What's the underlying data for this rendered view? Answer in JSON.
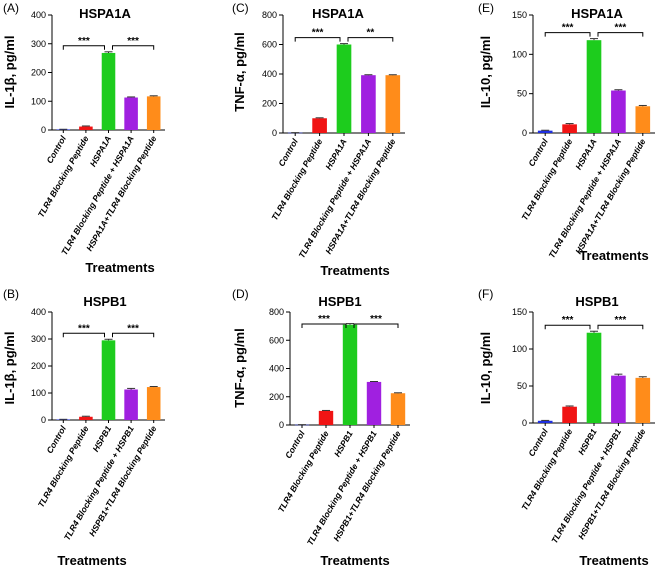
{
  "figure": {
    "colors": [
      "#1f2fe0",
      "#f01414",
      "#1dcc1d",
      "#a020e0",
      "#ff8c1a"
    ],
    "panels": [
      {
        "letter": "(A)",
        "title": "HSPA1A",
        "ylabel": "IL-1β, pg/ml",
        "xlabel": "Treatments",
        "ylim": [
          0,
          400
        ],
        "yticks": [
          0,
          100,
          200,
          300,
          400
        ],
        "stars": [
          "***",
          "***"
        ]
      },
      {
        "letter": "(C)",
        "title": "HSPA1A",
        "ylabel": "TNF-α, pg/ml",
        "xlabel": "Treatments",
        "ylim": [
          0,
          800
        ],
        "yticks": [
          0,
          200,
          400,
          600,
          800
        ],
        "stars": [
          "***",
          "**"
        ]
      },
      {
        "letter": "(E)",
        "title": "HSPA1A",
        "ylabel": "IL-10, pg/ml",
        "xlabel": "Treatments",
        "ylim": [
          0,
          150
        ],
        "yticks": [
          0,
          50,
          100,
          150
        ],
        "stars": [
          "***",
          "***"
        ]
      },
      {
        "letter": "(B)",
        "title": "HSPB1",
        "ylabel": "IL-1β, pg/ml",
        "xlabel": "Treatments",
        "ylim": [
          0,
          400
        ],
        "yticks": [
          0,
          100,
          200,
          300,
          400
        ],
        "stars": [
          "***",
          "***"
        ]
      },
      {
        "letter": "(D)",
        "title": "HSPB1",
        "ylabel": "TNF-α, pg/ml",
        "xlabel": "Treatments",
        "ylim": [
          0,
          800
        ],
        "yticks": [
          0,
          200,
          400,
          600,
          800
        ],
        "stars": [
          "***",
          "***"
        ]
      },
      {
        "letter": "(F)",
        "title": "HSPB1",
        "ylabel": "IL-10, pg/ml",
        "xlabel": "Treatments",
        "ylim": [
          0,
          150
        ],
        "yticks": [
          0,
          50,
          100,
          150
        ],
        "stars": [
          "***",
          "***"
        ]
      }
    ]
  },
  "chart_data": [
    {
      "type": "bar",
      "title": "HSPA1A",
      "xlabel": "Treatments",
      "ylabel": "IL-1β, pg/ml",
      "ylim": [
        0,
        400
      ],
      "categories": [
        "Control",
        "TLR4 Blocking Peptide",
        "HSPA1A",
        "TLR4 Blocking Peptide + HSPA1A",
        "HSPA1A+TLR4 Blocking Peptide"
      ],
      "values": [
        2,
        12,
        268,
        113,
        117
      ],
      "errors": [
        0.5,
        2,
        4,
        2,
        2
      ],
      "significance": [
        {
          "from": 0,
          "to": 2,
          "label": "***"
        },
        {
          "from": 2,
          "to": 4,
          "label": "***"
        }
      ],
      "grid": false,
      "legend": "none"
    },
    {
      "type": "bar",
      "title": "HSPA1A",
      "xlabel": "Treatments",
      "ylabel": "TNF-α, pg/ml",
      "ylim": [
        0,
        800
      ],
      "categories": [
        "Control",
        "TLR4 Blocking Peptide",
        "HSPA1A",
        "TLR4 Blocking Peptide + HSPA1A",
        "HSPA1A+TLR4 Blocking Peptide"
      ],
      "values": [
        2,
        100,
        600,
        392,
        392
      ],
      "errors": [
        0.5,
        3,
        6,
        3,
        3
      ],
      "significance": [
        {
          "from": 0,
          "to": 2,
          "label": "***"
        },
        {
          "from": 2,
          "to": 4,
          "label": "**"
        }
      ],
      "grid": false,
      "legend": "none"
    },
    {
      "type": "bar",
      "title": "HSPA1A",
      "xlabel": "Treatments",
      "ylabel": "IL-10, pg/ml",
      "ylim": [
        0,
        150
      ],
      "categories": [
        "Control",
        "TLR4 Blocking Peptide",
        "HSPA1A",
        "TLR4 Blocking Peptide + HSPA1A",
        "HSPA1A+TLR4 Blocking Peptide"
      ],
      "values": [
        3,
        11,
        118,
        54,
        34
      ],
      "errors": [
        0.5,
        1,
        2,
        1,
        1
      ],
      "significance": [
        {
          "from": 0,
          "to": 2,
          "label": "***"
        },
        {
          "from": 2,
          "to": 4,
          "label": "***"
        }
      ],
      "grid": false,
      "legend": "none"
    },
    {
      "type": "bar",
      "title": "HSPB1",
      "xlabel": "Treatments",
      "ylabel": "IL-1β, pg/ml",
      "ylim": [
        0,
        400
      ],
      "categories": [
        "Control",
        "TLR4 Blocking Peptide",
        "HSPB1",
        "TLR4 Blocking Peptide + HSPB1",
        "HSPB1+TLR4 Blocking Peptide"
      ],
      "values": [
        2,
        12,
        295,
        113,
        122
      ],
      "errors": [
        0.5,
        2,
        4,
        4,
        2
      ],
      "significance": [
        {
          "from": 0,
          "to": 2,
          "label": "***"
        },
        {
          "from": 2,
          "to": 4,
          "label": "***"
        }
      ],
      "grid": false,
      "legend": "none"
    },
    {
      "type": "bar",
      "title": "HSPB1",
      "xlabel": "Treatments",
      "ylabel": "TNF-α, pg/ml",
      "ylim": [
        0,
        800
      ],
      "categories": [
        "Control",
        "TLR4 Blocking Peptide",
        "HSPB1",
        "TLR4 Blocking Peptide + HSPB1",
        "HSPB1+TLR4 Blocking Peptide"
      ],
      "values": [
        2,
        100,
        710,
        305,
        225
      ],
      "errors": [
        0.5,
        3,
        8,
        3,
        3
      ],
      "significance": [
        {
          "from": 0,
          "to": 2,
          "label": "***"
        },
        {
          "from": 2,
          "to": 4,
          "label": "***"
        }
      ],
      "grid": false,
      "legend": "none"
    },
    {
      "type": "bar",
      "title": "HSPB1",
      "xlabel": "Treatments",
      "ylabel": "IL-10, pg/ml",
      "ylim": [
        0,
        150
      ],
      "categories": [
        "Control",
        "TLR4 Blocking Peptide",
        "HSPB1",
        "TLR4 Blocking Peptide + HSPB1",
        "HSPB1+TLR4 Blocking Peptide"
      ],
      "values": [
        3,
        22,
        122,
        64,
        61
      ],
      "errors": [
        0.5,
        1,
        2,
        2,
        1.5
      ],
      "significance": [
        {
          "from": 0,
          "to": 2,
          "label": "***"
        },
        {
          "from": 2,
          "to": 4,
          "label": "***"
        }
      ],
      "grid": false,
      "legend": "none"
    }
  ]
}
